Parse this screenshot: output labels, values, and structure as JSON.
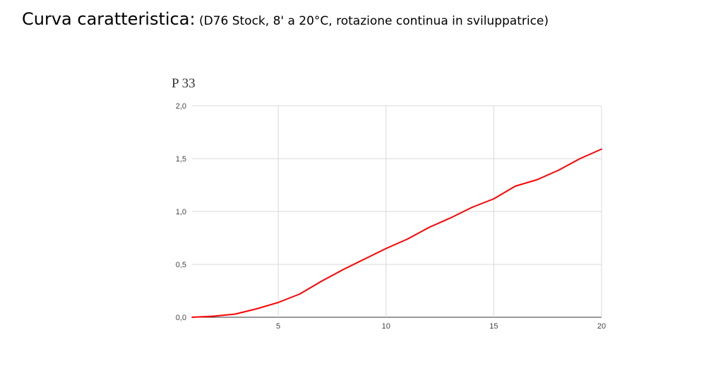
{
  "slide": {
    "title_main": "Curva caratteristica:",
    "title_sub": " (D76 Stock, 8' a 20°C, rotazione continua in sviluppatrice)"
  },
  "chart_data": {
    "type": "line",
    "title": "P 33",
    "xlabel": "",
    "ylabel": "",
    "xlim": [
      1,
      20
    ],
    "ylim": [
      0,
      2.0
    ],
    "x_ticks": [
      5,
      10,
      15,
      20
    ],
    "y_ticks": [
      0.0,
      0.5,
      1.0,
      1.5,
      2.0
    ],
    "x_tick_labels": [
      "5",
      "10",
      "15",
      "20"
    ],
    "y_tick_labels": [
      "0,0",
      "0,5",
      "1,0",
      "1,5",
      "2,0"
    ],
    "grid": true,
    "series": [
      {
        "name": "",
        "color": "#ff0000",
        "x": [
          1,
          2,
          3,
          4,
          5,
          6,
          7,
          8,
          9,
          10,
          11,
          12,
          13,
          14,
          15,
          16,
          17,
          18,
          19,
          20
        ],
        "y": [
          0.0,
          0.01,
          0.03,
          0.08,
          0.14,
          0.22,
          0.34,
          0.45,
          0.55,
          0.65,
          0.74,
          0.85,
          0.94,
          1.04,
          1.12,
          1.24,
          1.3,
          1.39,
          1.5,
          1.59
        ]
      }
    ]
  }
}
